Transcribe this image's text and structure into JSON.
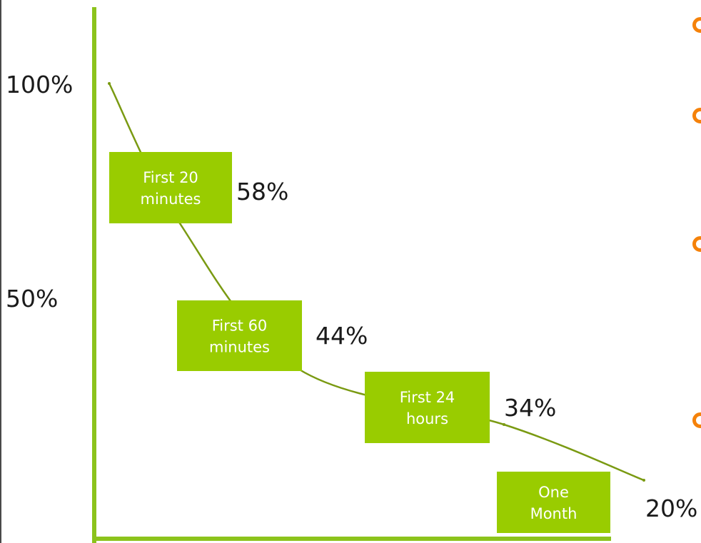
{
  "chart_data": {
    "type": "line",
    "title": "",
    "xlabel": "",
    "ylabel": "",
    "ylim": [
      0,
      100
    ],
    "y_ticks": [
      "100%",
      "50%"
    ],
    "series": [
      {
        "points": [
          {
            "x": 0,
            "y": 100
          },
          {
            "x": 1,
            "y": 58
          },
          {
            "x": 2,
            "y": 44
          },
          {
            "x": 3,
            "y": 34
          },
          {
            "x": 4,
            "y": 20
          }
        ]
      }
    ],
    "time_labels": [
      {
        "lines": [
          "First 20",
          "minutes"
        ]
      },
      {
        "lines": [
          "First 60",
          "minutes"
        ]
      },
      {
        "lines": [
          "First 24",
          "hours"
        ]
      },
      {
        "lines": [
          "One",
          "Month"
        ]
      }
    ],
    "value_labels": [
      "58%",
      "44%",
      "34%",
      "20%"
    ],
    "grid": false,
    "colors": {
      "line": "#7a9a12",
      "axis": "#8cc31c",
      "box": "#99cc00",
      "box_text": "#ffffff",
      "bullet": "#f5820a"
    }
  },
  "side_bullets": {
    "icon": "circle-bullet-icon",
    "count": 4
  }
}
